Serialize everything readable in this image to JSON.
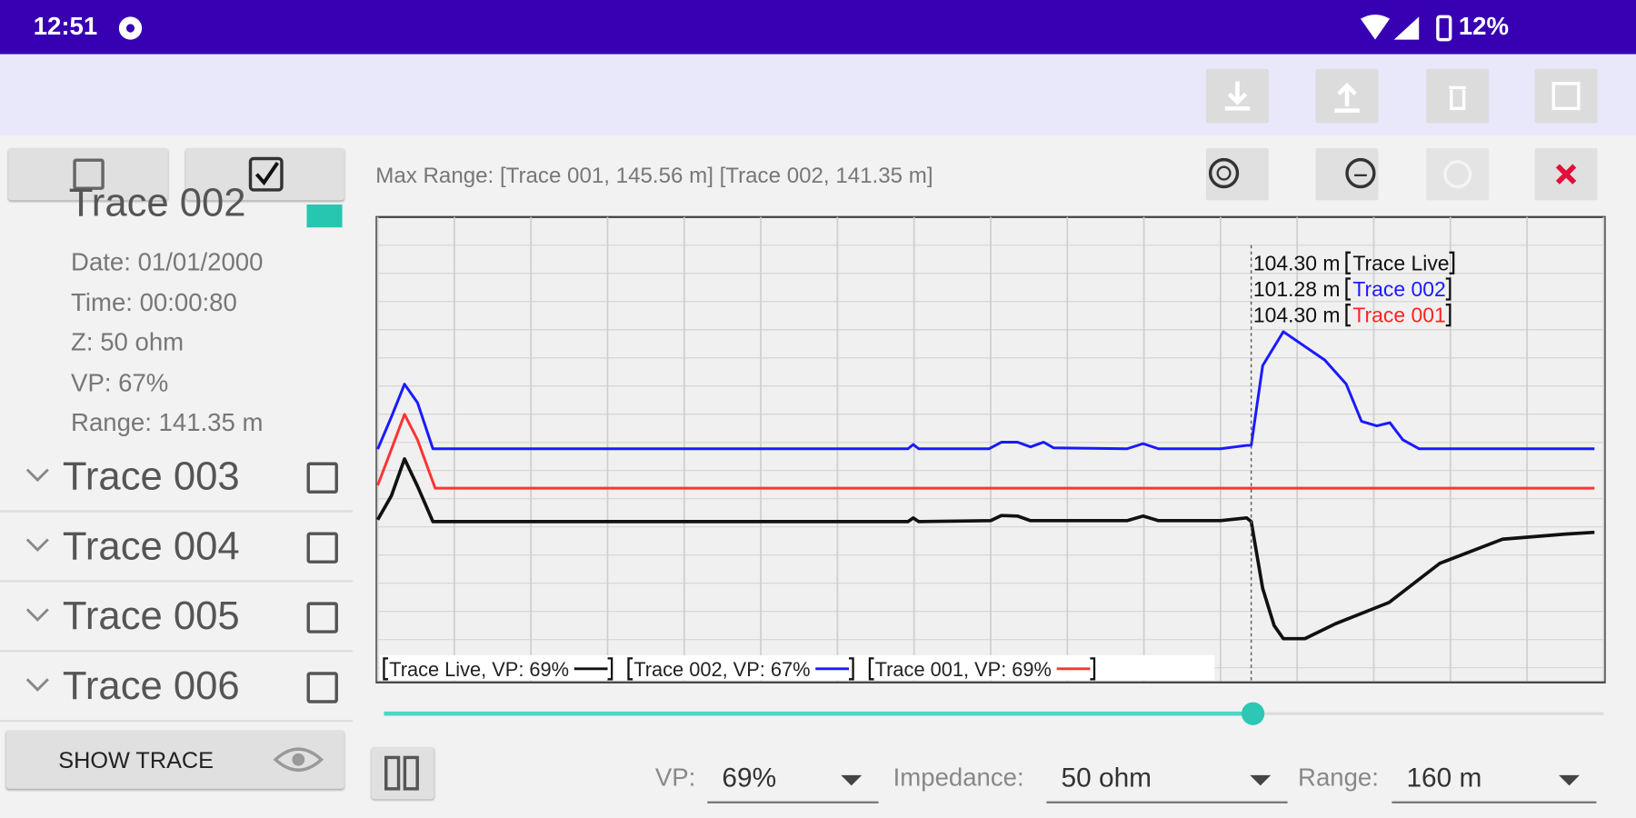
{
  "status_bar": {
    "time": "12:51",
    "battery": "12%"
  },
  "left_panel": {
    "expanded_trace": "Trace 002",
    "details": [
      "Date: 01/01/2000",
      "Time: 00:00:80",
      "Z: 50 ohm",
      "VP: 67%",
      "Range: 141.35 m"
    ],
    "traces": [
      "Trace 003",
      "Trace 004",
      "Trace 005",
      "Trace 006"
    ],
    "show_button": "SHOW TRACE"
  },
  "max_range": "Max Range: [Trace 001, 145.56 m] [Trace 002, 141.35 m]",
  "chart_data": {
    "type": "line",
    "xlim": [
      0,
      160
    ],
    "ylim": [
      0,
      100
    ],
    "xticks": [
      0,
      10,
      20,
      30,
      40,
      50,
      60,
      70,
      80,
      90,
      100,
      110,
      120,
      130,
      140,
      150,
      160
    ],
    "grid": true,
    "cursor": 114,
    "cursor_labels": [
      {
        "distance": "104.30 m",
        "trace": "Trace Live",
        "color": "#111111"
      },
      {
        "distance": "101.28 m",
        "trace": "Trace 002",
        "color": "#1a1aff"
      },
      {
        "distance": "104.30 m",
        "trace": "Trace 001",
        "color": "#ff2222"
      }
    ],
    "series": [
      {
        "name": "Trace Live, VP: 69%",
        "color": "#111111",
        "x": [
          0,
          1.8,
          3.5,
          5.2,
          7.2,
          69.2,
          69.9,
          70.6,
          80,
          81.4,
          83.5,
          85.2,
          88.2,
          97.8,
          99.9,
          101.9,
          110,
          113.4,
          114,
          115.5,
          117,
          118.2,
          121,
          125,
          132,
          138.6,
          146.8,
          155,
          158.8
        ],
        "values": [
          34.8,
          40,
          47.9,
          42,
          34.4,
          34.4,
          35.2,
          34.4,
          34.6,
          35.7,
          35.6,
          34.6,
          34.6,
          34.6,
          35.6,
          34.6,
          34.6,
          35.2,
          34.4,
          20,
          12,
          9.2,
          9.2,
          12.4,
          17,
          25.4,
          30.6,
          31.7,
          32.1
        ]
      },
      {
        "name": "Trace 002, VP: 67%",
        "color": "#1a1aff",
        "x": [
          0,
          1.8,
          3.5,
          5.2,
          7.2,
          69.2,
          69.9,
          70.6,
          79.8,
          81.4,
          83.5,
          85.2,
          86.9,
          88.2,
          97.8,
          99.9,
          101.9,
          110,
          113.4,
          114,
          115.5,
          118.2,
          123.6,
          126.4,
          128.4,
          130.4,
          132.1,
          133.8,
          135.9,
          158.8
        ],
        "values": [
          50,
          57,
          64,
          60,
          50.1,
          50.1,
          51,
          50.1,
          50.1,
          51.5,
          51.5,
          50.5,
          51.5,
          50.3,
          50.1,
          51.2,
          50.1,
          50.1,
          50.8,
          50.8,
          68,
          75.3,
          69.2,
          64,
          56,
          55,
          55.7,
          52,
          50.1,
          50.1
        ]
      },
      {
        "name": "Trace 001, VP: 69%",
        "color": "#ff3333",
        "x": [
          0,
          1.8,
          3.5,
          5.2,
          7.5,
          158.8
        ],
        "values": [
          42.2,
          50,
          57.5,
          52,
          41.6,
          41.6
        ]
      }
    ]
  },
  "controls": {
    "vp": {
      "label": "VP:",
      "value": "69%"
    },
    "impedance": {
      "label": "Impedance:",
      "value": "50 ohm"
    },
    "range": {
      "label": "Range:",
      "value": "160 m"
    }
  }
}
